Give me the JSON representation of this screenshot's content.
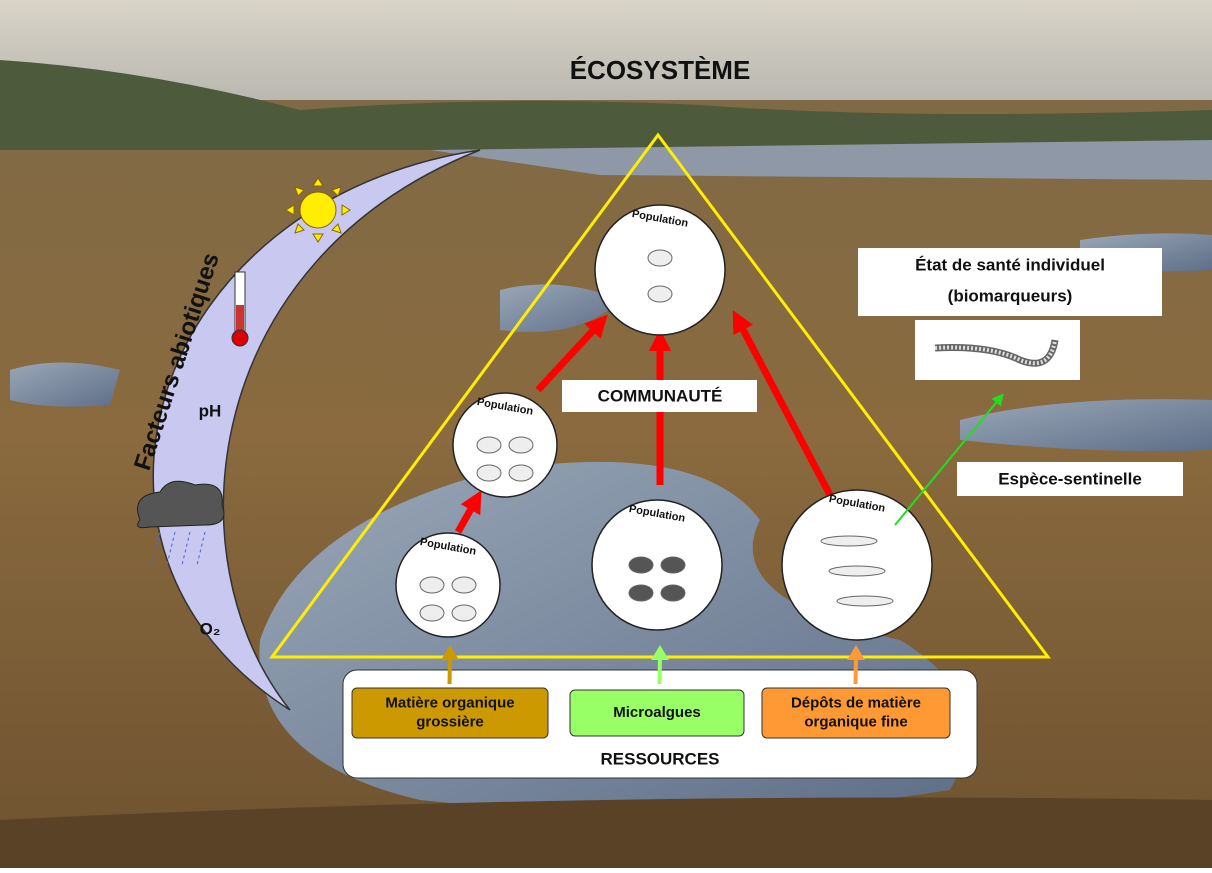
{
  "title": "ÉCOSYSTÈME",
  "abiotic": {
    "label": "Facteurs abiotiques",
    "items": [
      "pH",
      "O₂"
    ]
  },
  "community": "COMMUNAUTÉ",
  "populations": [
    {
      "label": "Population"
    },
    {
      "label": "Population"
    },
    {
      "label": "Population"
    },
    {
      "label": "Population"
    },
    {
      "label": "Population"
    }
  ],
  "resources": {
    "title": "RESSOURCES",
    "items": [
      {
        "label": [
          "Matière organique",
          "grossière"
        ]
      },
      {
        "label": [
          "Microalgues"
        ]
      },
      {
        "label": [
          "Dépôts de matière",
          "organique fine"
        ]
      }
    ]
  },
  "sentinel": "Espèce-sentinelle",
  "health": [
    "État de santé individuel",
    "(biomarqueurs)"
  ]
}
